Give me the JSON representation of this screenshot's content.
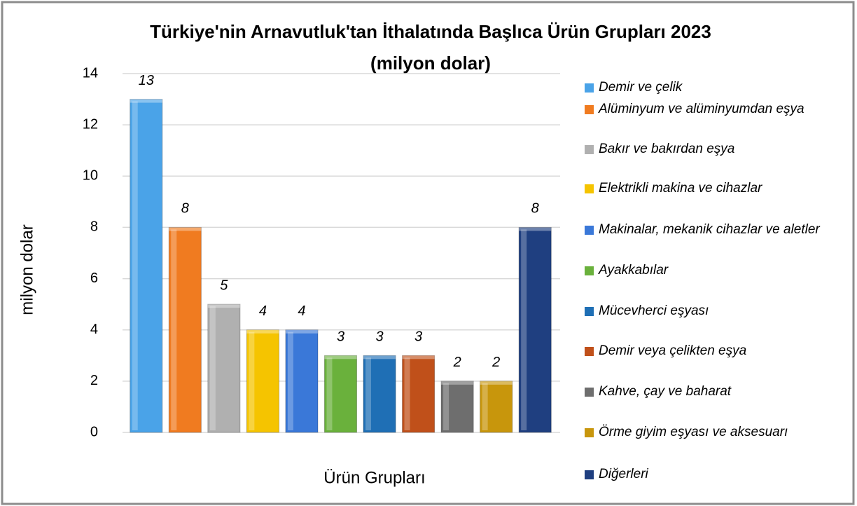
{
  "chart_data": {
    "type": "bar",
    "title": "Türkiye'nin Arnavutluk'tan İthalatında Başlıca Ürün Grupları 2023",
    "subtitle": "(milyon dolar)",
    "x_label": "Ürün Grupları",
    "y_label": "milyon dolar",
    "categories": [
      "Demir ve çelik",
      "Alüminyum ve alüminyumdan eşya",
      "Bakır ve bakırdan eşya",
      "Elektrikli makina ve cihazlar",
      "Makinalar, mekanik cihazlar ve aletler",
      "Ayakkabılar",
      "Mücevherci eşyası",
      "Demir veya çelikten eşya",
      "Kahve, çay ve baharat",
      "Örme giyim eşyası ve aksesuarı",
      "Diğerleri"
    ],
    "values": [
      13,
      8,
      5,
      4,
      4,
      3,
      3,
      3,
      2,
      2,
      8
    ],
    "colors": [
      "#4aa3e8",
      "#f07b20",
      "#b0b0b0",
      "#f5c400",
      "#3a78d8",
      "#6ab13c",
      "#1f6fb5",
      "#c0501a",
      "#6e6e6e",
      "#c8960c",
      "#1f3f80"
    ],
    "ylim": [
      0,
      14
    ],
    "yticks": [
      0,
      2,
      4,
      6,
      8,
      10,
      12,
      14
    ],
    "grid": true,
    "legend": "right"
  }
}
